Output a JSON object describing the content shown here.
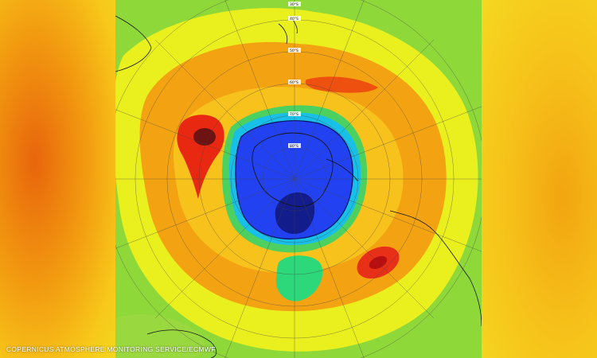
{
  "map": {
    "type": "polar-stereographic",
    "hemisphere": "southern",
    "variable": "total column ozone",
    "colors": {
      "background_light_green": "#8fd83a",
      "yellow": "#f0f020",
      "orange": "#f5a010",
      "red": "#e82010",
      "dark_red": "#6a1010",
      "cyan": "#10c8e8",
      "blue": "#2040f0",
      "dark_blue": "#101880"
    },
    "graticule_labels": [
      "30°S",
      "40°S",
      "50°S",
      "60°S",
      "70°S",
      "80°S"
    ]
  },
  "credit": {
    "text": "COPERNICUS ATMOSPHERE MONITORING SERVICE/ECMWF"
  }
}
